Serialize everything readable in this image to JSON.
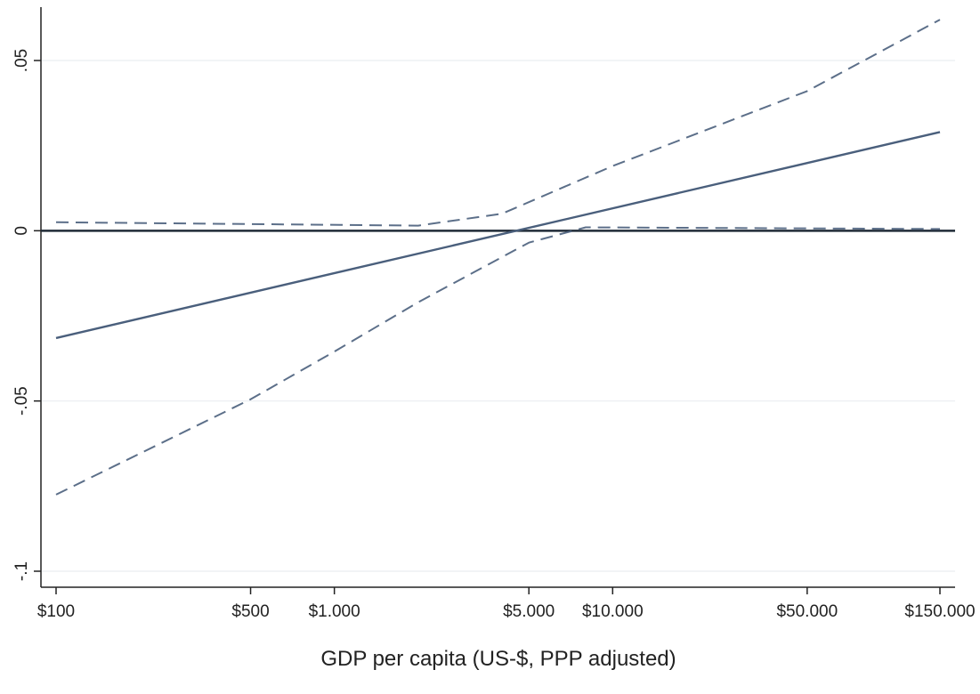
{
  "chart_data": {
    "type": "line",
    "title": "",
    "xlabel": "GDP per capita (US-$, PPP adjusted)",
    "ylabel": "",
    "x_scale": "log",
    "xlim": [
      100,
      150000
    ],
    "ylim": [
      -0.1,
      0.05
    ],
    "grid": true,
    "legend": "none",
    "x_ticks": [
      {
        "value": 100,
        "label": "$100"
      },
      {
        "value": 500,
        "label": "$500"
      },
      {
        "value": 1000,
        "label": "$1.000"
      },
      {
        "value": 5000,
        "label": "$5.000"
      },
      {
        "value": 10000,
        "label": "$10.000"
      },
      {
        "value": 50000,
        "label": "$50.000"
      },
      {
        "value": 150000,
        "label": "$150.000"
      }
    ],
    "y_ticks": [
      {
        "value": 0.05,
        "label": ".05"
      },
      {
        "value": 0,
        "label": "0"
      },
      {
        "value": -0.05,
        "label": "-.05"
      },
      {
        "value": -0.1,
        "label": "-.1"
      }
    ],
    "series": [
      {
        "style": "solid",
        "color": "#4a5f7c",
        "x": [
          100,
          150000
        ],
        "y": [
          -0.0315,
          0.029
        ]
      },
      {
        "style": "dashed",
        "color": "#4a5f7c",
        "x": [
          100,
          2000,
          4000,
          10000,
          50000,
          150000
        ],
        "y": [
          0.0025,
          0.0015,
          0.005,
          0.019,
          0.041,
          0.062
        ]
      },
      {
        "style": "dashed",
        "color": "#4a5f7c",
        "x": [
          100,
          500,
          1000,
          2000,
          5000,
          8000,
          150000
        ],
        "y": [
          -0.0775,
          -0.0495,
          -0.0355,
          -0.021,
          -0.0035,
          0.001,
          0.0005
        ]
      }
    ],
    "reference_line": {
      "y": 0,
      "color": "#1f2a36"
    }
  }
}
